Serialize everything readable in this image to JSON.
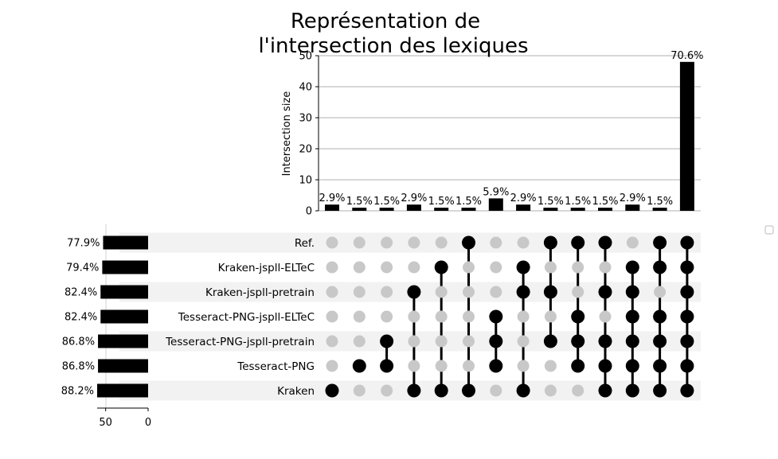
{
  "chart_data": {
    "type": "upset",
    "title_lines": [
      "Représentation de",
      "l'intersection des lexiques"
    ],
    "ylabel": "Intersection size",
    "ylim": [
      0,
      50
    ],
    "yticks": [
      "0",
      "10",
      "20",
      "30",
      "40",
      "50"
    ],
    "grid": true,
    "sets": [
      {
        "name": "Ref.",
        "size": 53,
        "percent_label": "77.9%"
      },
      {
        "name": "Kraken-jspll-ELTeC",
        "size": 54,
        "percent_label": "79.4%"
      },
      {
        "name": "Kraken-jspll-pretrain",
        "size": 56,
        "percent_label": "82.4%"
      },
      {
        "name": "Tesseract-PNG-jspll-ELTeC",
        "size": 56,
        "percent_label": "82.4%"
      },
      {
        "name": "Tesseract-PNG-jspll-pretrain",
        "size": 59,
        "percent_label": "86.8%"
      },
      {
        "name": "Tesseract-PNG",
        "size": 59,
        "percent_label": "86.8%"
      },
      {
        "name": "Kraken",
        "size": 60,
        "percent_label": "88.2%"
      }
    ],
    "set_size_ticks": [
      "50",
      "0"
    ],
    "set_size_tick_values": [
      50,
      0
    ],
    "set_size_max": 60,
    "intersections": [
      {
        "size": 2,
        "label": "2.9%",
        "members": [
          "Kraken"
        ]
      },
      {
        "size": 1,
        "label": "1.5%",
        "members": [
          "Tesseract-PNG"
        ]
      },
      {
        "size": 1,
        "label": "1.5%",
        "members": [
          "Tesseract-PNG-jspll-pretrain",
          "Tesseract-PNG"
        ]
      },
      {
        "size": 2,
        "label": "2.9%",
        "members": [
          "Kraken-jspll-pretrain",
          "Kraken"
        ]
      },
      {
        "size": 1,
        "label": "1.5%",
        "members": [
          "Kraken-jspll-ELTeC",
          "Kraken"
        ]
      },
      {
        "size": 1,
        "label": "1.5%",
        "members": [
          "Ref.",
          "Kraken"
        ]
      },
      {
        "size": 4,
        "label": "5.9%",
        "members": [
          "Tesseract-PNG-jspll-ELTeC",
          "Tesseract-PNG-jspll-pretrain",
          "Tesseract-PNG"
        ]
      },
      {
        "size": 2,
        "label": "2.9%",
        "members": [
          "Kraken-jspll-ELTeC",
          "Kraken-jspll-pretrain",
          "Kraken"
        ]
      },
      {
        "size": 1,
        "label": "1.5%",
        "members": [
          "Ref.",
          "Kraken-jspll-pretrain",
          "Tesseract-PNG-jspll-pretrain"
        ]
      },
      {
        "size": 1,
        "label": "1.5%",
        "members": [
          "Ref.",
          "Tesseract-PNG-jspll-ELTeC",
          "Tesseract-PNG-jspll-pretrain",
          "Tesseract-PNG"
        ]
      },
      {
        "size": 1,
        "label": "1.5%",
        "members": [
          "Ref.",
          "Kraken-jspll-pretrain",
          "Tesseract-PNG-jspll-pretrain",
          "Tesseract-PNG",
          "Kraken"
        ]
      },
      {
        "size": 2,
        "label": "2.9%",
        "members": [
          "Kraken-jspll-ELTeC",
          "Kraken-jspll-pretrain",
          "Tesseract-PNG-jspll-ELTeC",
          "Tesseract-PNG-jspll-pretrain",
          "Tesseract-PNG",
          "Kraken"
        ]
      },
      {
        "size": 1,
        "label": "1.5%",
        "members": [
          "Ref.",
          "Kraken-jspll-ELTeC",
          "Tesseract-PNG-jspll-ELTeC",
          "Tesseract-PNG-jspll-pretrain",
          "Tesseract-PNG",
          "Kraken"
        ]
      },
      {
        "size": 48,
        "label": "70.6%",
        "members": [
          "Ref.",
          "Kraken-jspll-ELTeC",
          "Kraken-jspll-pretrain",
          "Tesseract-PNG-jspll-ELTeC",
          "Tesseract-PNG-jspll-pretrain",
          "Tesseract-PNG",
          "Kraken"
        ]
      }
    ],
    "colors": {
      "active": "#000000",
      "inactive": "#c8c8c8",
      "stripe": "#f2f2f2",
      "grid": "#b0b0b0"
    }
  }
}
